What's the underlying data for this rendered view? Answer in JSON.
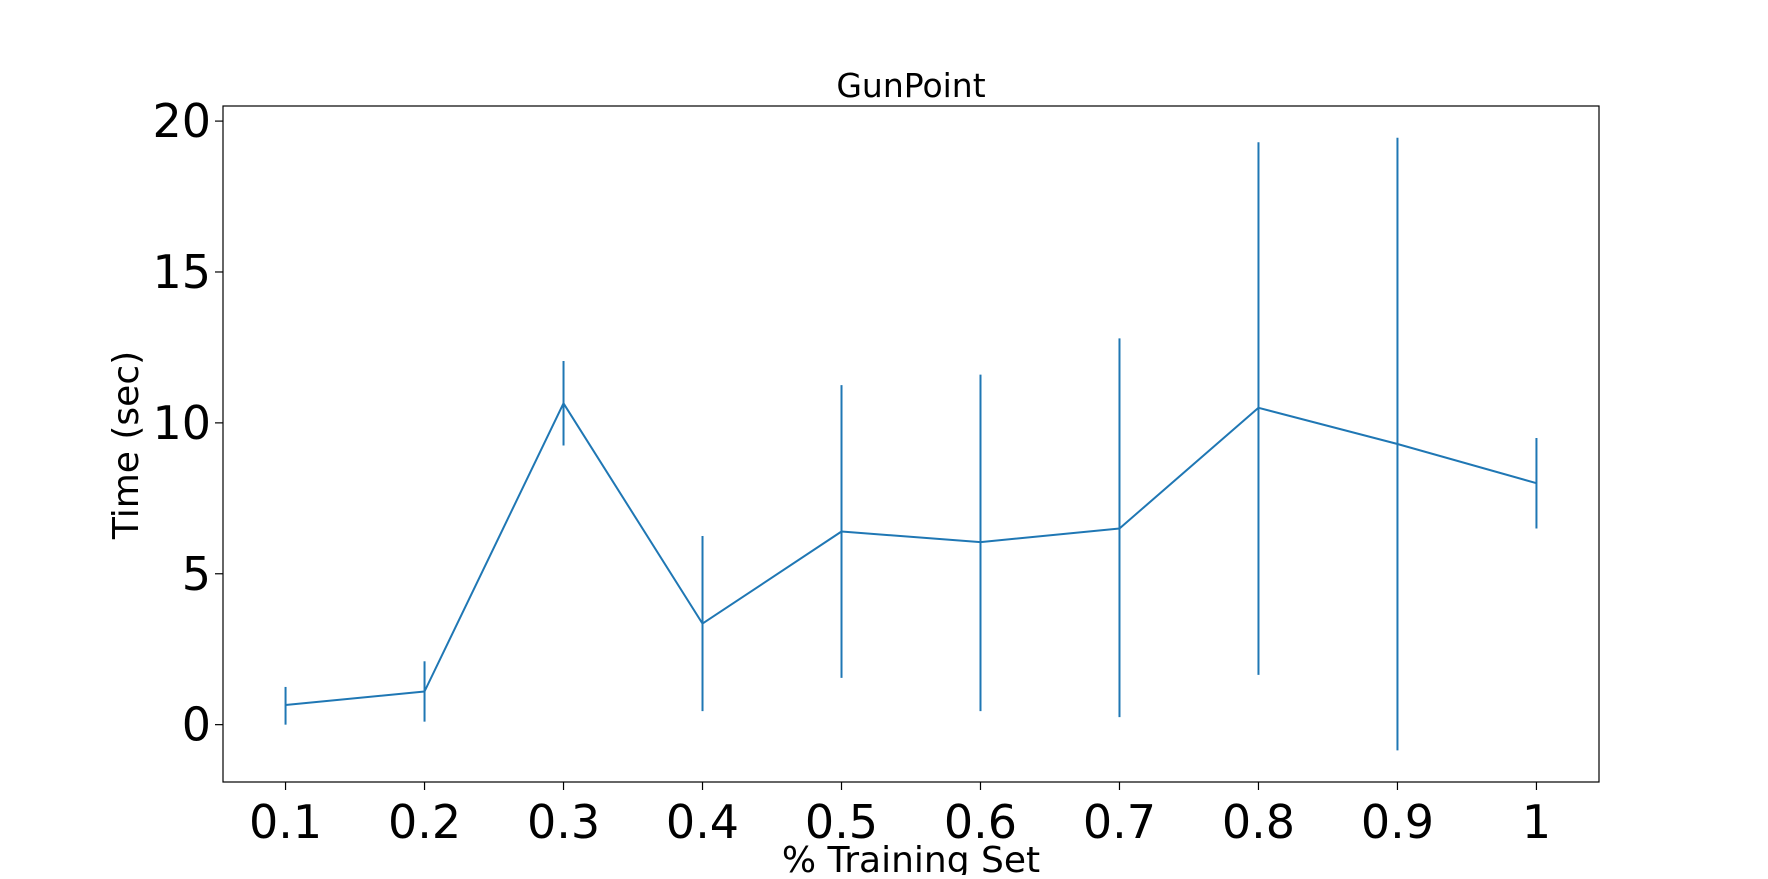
{
  "chart_data": {
    "type": "line",
    "title": "GunPoint",
    "xlabel": "% Training Set",
    "ylabel": "Time (sec)",
    "x": [
      0.1,
      0.2,
      0.3,
      0.4,
      0.5,
      0.6,
      0.7,
      0.8,
      0.9,
      1
    ],
    "x_tick_labels": [
      "0.1",
      "0.2",
      "0.3",
      "0.4",
      "0.5",
      "0.6",
      "0.7",
      "0.8",
      "0.9",
      "1"
    ],
    "y_ticks": [
      0,
      5,
      10,
      15,
      20
    ],
    "y_tick_labels": [
      "0",
      "5",
      "10",
      "15",
      "20"
    ],
    "xlim": [
      0.055,
      1.045
    ],
    "ylim": [
      -1.9,
      20.5
    ],
    "grid": false,
    "legend": "none",
    "series": [
      {
        "color": "#1f77b4",
        "values": [
          0.65,
          1.1,
          10.65,
          3.35,
          6.4,
          6.05,
          6.5,
          10.5,
          9.3,
          8.0
        ],
        "error_low": [
          0.0,
          0.1,
          9.25,
          0.45,
          1.55,
          0.45,
          0.25,
          1.65,
          -0.85,
          6.5
        ],
        "error_high": [
          1.25,
          2.1,
          12.05,
          6.25,
          11.25,
          11.6,
          12.8,
          19.3,
          19.45,
          9.5
        ]
      }
    ]
  }
}
